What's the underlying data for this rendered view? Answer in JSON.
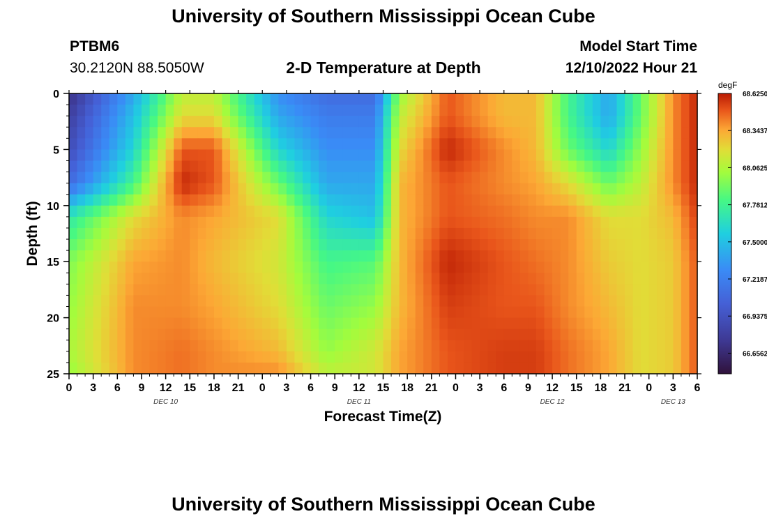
{
  "header": {
    "title": "University of Southern Mississippi Ocean Cube",
    "station": "PTBM6",
    "coordinates": "30.2120N  88.5050W",
    "subtitle": "2-D Temperature at Depth",
    "model_start_label": "Model Start Time",
    "model_start_value": "12/10/2022 Hour 21"
  },
  "footer": {
    "title": "University of Southern Mississippi Ocean Cube"
  },
  "chart_data": {
    "type": "heatmap",
    "xlabel": "Forecast Time(Z)",
    "ylabel": "Depth (ft)",
    "x_range_hours": [
      0,
      78
    ],
    "y_range": [
      0,
      25
    ],
    "y_inverted": true,
    "x_ticks": [
      "0",
      "3",
      "6",
      "9",
      "12",
      "15",
      "18",
      "21",
      "0",
      "3",
      "6",
      "9",
      "12",
      "15",
      "18",
      "21",
      "0",
      "3",
      "6",
      "9",
      "12",
      "15",
      "18",
      "21",
      "0",
      "3",
      "6"
    ],
    "y_ticks": [
      0,
      5,
      10,
      15,
      20,
      25
    ],
    "date_labels": [
      {
        "label": "DEC 10",
        "hour": 12
      },
      {
        "label": "DEC 11",
        "hour": 36
      },
      {
        "label": "DEC 12",
        "hour": 60
      },
      {
        "label": "DEC 13",
        "hour": 75
      }
    ],
    "colorbar": {
      "unit": "degF",
      "min": 66.5,
      "max": 68.625,
      "tick_labels": [
        "68.6250",
        "68.3437",
        "68.0625",
        "67.7812",
        "67.5000",
        "67.2187",
        "66.9375",
        "66.6562"
      ],
      "tick_values": [
        68.625,
        68.34375,
        68.0625,
        67.78125,
        67.5,
        67.21875,
        66.9375,
        66.65625
      ]
    },
    "grid_x_hours": [
      0,
      8,
      14,
      18,
      26,
      32,
      38,
      41,
      47,
      54,
      58,
      62,
      67,
      71,
      75,
      78
    ],
    "grid_depths_ft": [
      0,
      2,
      5,
      8,
      11,
      15,
      19,
      23,
      25
    ],
    "values_degF": [
      [
        66.7,
        67.4,
        68.1,
        68.1,
        67.3,
        67.1,
        67.1,
        68.0,
        68.5,
        68.3,
        68.3,
        67.8,
        67.4,
        67.9,
        68.4,
        68.6
      ],
      [
        66.8,
        67.5,
        68.2,
        68.2,
        67.4,
        67.2,
        67.2,
        68.1,
        68.5,
        68.3,
        68.3,
        67.8,
        67.4,
        67.9,
        68.4,
        68.6
      ],
      [
        66.9,
        67.6,
        68.5,
        68.5,
        67.6,
        67.3,
        67.3,
        68.2,
        68.6,
        68.4,
        68.3,
        67.9,
        67.6,
        68.0,
        68.4,
        68.6
      ],
      [
        67.1,
        67.8,
        68.6,
        68.5,
        67.9,
        67.4,
        67.4,
        68.3,
        68.5,
        68.4,
        68.35,
        68.2,
        67.9,
        68.1,
        68.4,
        68.6
      ],
      [
        67.7,
        68.2,
        68.4,
        68.35,
        68.2,
        67.6,
        67.5,
        68.3,
        68.5,
        68.45,
        68.4,
        68.4,
        68.2,
        68.2,
        68.3,
        68.55
      ],
      [
        67.95,
        68.35,
        68.4,
        68.3,
        68.15,
        67.8,
        67.85,
        68.3,
        68.6,
        68.5,
        68.45,
        68.4,
        68.25,
        68.2,
        68.25,
        68.5
      ],
      [
        68.0,
        68.4,
        68.4,
        68.35,
        68.2,
        67.9,
        68.0,
        68.3,
        68.55,
        68.5,
        68.5,
        68.4,
        68.3,
        68.2,
        68.25,
        68.5
      ],
      [
        68.05,
        68.4,
        68.45,
        68.4,
        68.3,
        68.0,
        68.15,
        68.35,
        68.5,
        68.55,
        68.55,
        68.45,
        68.35,
        68.2,
        68.25,
        68.5
      ],
      [
        68.0,
        68.4,
        68.45,
        68.4,
        68.4,
        68.1,
        68.15,
        68.35,
        68.5,
        68.55,
        68.55,
        68.45,
        68.35,
        68.2,
        68.25,
        68.5
      ]
    ]
  }
}
